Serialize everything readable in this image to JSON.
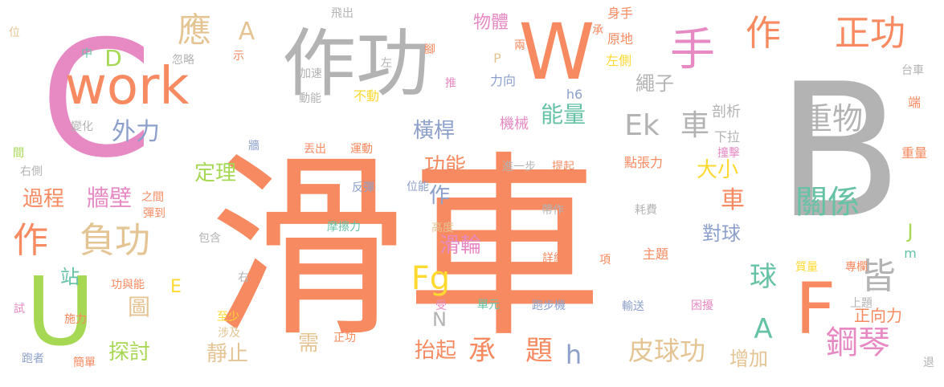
{
  "palette": {
    "orange": "#f78a60",
    "gray": "#b3b3b3",
    "pink": "#e78ac3",
    "green": "#66c2a5",
    "blue": "#8da0cb",
    "lime": "#a6d854",
    "yellow": "#ffd92f",
    "tan": "#e5c494"
  },
  "words": [
    {
      "text": "滑車",
      "color": "orange"
    },
    {
      "text": "B",
      "color": "gray"
    },
    {
      "text": "C",
      "color": "pink"
    },
    {
      "text": "作功",
      "color": "gray"
    },
    {
      "text": "W",
      "color": "orange"
    },
    {
      "text": "work",
      "color": "orange"
    },
    {
      "text": "U",
      "color": "lime"
    },
    {
      "text": "F",
      "color": "orange"
    },
    {
      "text": "手",
      "color": "pink"
    },
    {
      "text": "作",
      "color": "orange"
    },
    {
      "text": "正功",
      "color": "orange"
    },
    {
      "text": "重物",
      "color": "gray"
    },
    {
      "text": "Ek",
      "color": "gray"
    },
    {
      "text": "車",
      "color": "gray"
    },
    {
      "text": "皆",
      "color": "gray"
    },
    {
      "text": "鋼琴",
      "color": "pink"
    },
    {
      "text": "關係",
      "color": "green"
    },
    {
      "text": "作",
      "color": "orange"
    },
    {
      "text": "負功",
      "color": "tan"
    },
    {
      "text": "應",
      "color": "tan"
    },
    {
      "text": "A",
      "color": "tan"
    },
    {
      "text": "D",
      "color": "lime"
    },
    {
      "text": "外力",
      "color": "blue"
    },
    {
      "text": "過程",
      "color": "orange"
    },
    {
      "text": "牆壁",
      "color": "pink"
    },
    {
      "text": "定理",
      "color": "lime"
    },
    {
      "text": "Fg",
      "color": "yellow"
    },
    {
      "text": "承",
      "color": "orange"
    },
    {
      "text": "題",
      "color": "orange"
    },
    {
      "text": "皮球功",
      "color": "tan"
    },
    {
      "text": "A",
      "color": "green"
    },
    {
      "text": "球",
      "color": "green"
    },
    {
      "text": "能量",
      "color": "green"
    },
    {
      "text": "橫桿",
      "color": "blue"
    },
    {
      "text": "功能",
      "color": "orange"
    },
    {
      "text": "作",
      "color": "blue"
    },
    {
      "text": "滑輪",
      "color": "pink"
    },
    {
      "text": "車",
      "color": "orange"
    },
    {
      "text": "大小",
      "color": "yellow"
    },
    {
      "text": "對球",
      "color": "blue"
    },
    {
      "text": "增加",
      "color": "tan"
    },
    {
      "text": "站",
      "color": "green"
    },
    {
      "text": "圖",
      "color": "tan"
    },
    {
      "text": "探討",
      "color": "lime"
    },
    {
      "text": "靜止",
      "color": "tan"
    },
    {
      "text": "抬起",
      "color": "orange"
    },
    {
      "text": "需",
      "color": "tan"
    },
    {
      "text": "h",
      "color": "blue"
    },
    {
      "text": "N",
      "color": "gray"
    },
    {
      "text": "E",
      "color": "yellow"
    },
    {
      "text": "J",
      "color": "lime"
    },
    {
      "text": "m",
      "color": "green"
    },
    {
      "text": "物體",
      "color": "pink"
    },
    {
      "text": "繩子",
      "color": "gray"
    },
    {
      "text": "正向力",
      "color": "orange"
    },
    {
      "text": "機械",
      "color": "pink"
    },
    {
      "text": "剖析",
      "color": "gray"
    },
    {
      "text": "下拉",
      "color": "gray"
    },
    {
      "text": "撞擊",
      "color": "pink"
    },
    {
      "text": "重量",
      "color": "orange"
    },
    {
      "text": "台車",
      "color": "gray"
    },
    {
      "text": "端",
      "color": "orange"
    },
    {
      "text": "身手",
      "color": "orange"
    },
    {
      "text": "原地",
      "color": "orange"
    },
    {
      "text": "左側",
      "color": "yellow"
    },
    {
      "text": "承",
      "color": "orange"
    },
    {
      "text": "兩",
      "color": "orange"
    },
    {
      "text": "腳",
      "color": "orange"
    },
    {
      "text": "P",
      "color": "tan"
    },
    {
      "text": "力向",
      "color": "blue"
    },
    {
      "text": "h6",
      "color": "blue"
    },
    {
      "text": "推",
      "color": "pink"
    },
    {
      "text": "不動",
      "color": "yellow"
    },
    {
      "text": "動能",
      "color": "gray"
    },
    {
      "text": "加速",
      "color": "gray"
    },
    {
      "text": "左",
      "color": "gray"
    },
    {
      "text": "飛出",
      "color": "gray"
    },
    {
      "text": "忽略",
      "color": "gray"
    },
    {
      "text": "示",
      "color": "orange"
    },
    {
      "text": "中",
      "color": "green"
    },
    {
      "text": "位",
      "color": "tan"
    },
    {
      "text": "變化",
      "color": "gray"
    },
    {
      "text": "牆",
      "color": "blue"
    },
    {
      "text": "丟出",
      "color": "orange"
    },
    {
      "text": "運動",
      "color": "orange"
    },
    {
      "text": "進一步",
      "color": "gray"
    },
    {
      "text": "提起",
      "color": "orange"
    },
    {
      "text": "點張力",
      "color": "orange"
    },
    {
      "text": "反彈",
      "color": "blue"
    },
    {
      "text": "位能",
      "color": "blue"
    },
    {
      "text": "之間",
      "color": "orange"
    },
    {
      "text": "彈到",
      "color": "orange"
    },
    {
      "text": "帶作",
      "color": "gray"
    },
    {
      "text": "耗費",
      "color": "gray"
    },
    {
      "text": "摩擦力",
      "color": "green"
    },
    {
      "text": "高度",
      "color": "tan"
    },
    {
      "text": "詳細",
      "color": "orange"
    },
    {
      "text": "項",
      "color": "orange"
    },
    {
      "text": "主題",
      "color": "orange"
    },
    {
      "text": "質量",
      "color": "yellow"
    },
    {
      "text": "專欄",
      "color": "orange"
    },
    {
      "text": "包含",
      "color": "gray"
    },
    {
      "text": "右",
      "color": "gray"
    },
    {
      "text": "功與能",
      "color": "orange"
    },
    {
      "text": "單元",
      "color": "green"
    },
    {
      "text": "跑步機",
      "color": "blue"
    },
    {
      "text": "輸送",
      "color": "blue"
    },
    {
      "text": "困擾",
      "color": "pink"
    },
    {
      "text": "上題",
      "color": "gray"
    },
    {
      "text": "至少",
      "color": "yellow"
    },
    {
      "text": "涉及",
      "color": "tan"
    },
    {
      "text": "正功",
      "color": "orange"
    },
    {
      "text": "受",
      "color": "pink"
    },
    {
      "text": "試",
      "color": "pink"
    },
    {
      "text": "施力",
      "color": "orange"
    },
    {
      "text": "跑者",
      "color": "blue"
    },
    {
      "text": "簡單",
      "color": "orange"
    },
    {
      "text": "退",
      "color": "gray"
    },
    {
      "text": "間",
      "color": "lime"
    },
    {
      "text": "右側",
      "color": "gray"
    }
  ]
}
